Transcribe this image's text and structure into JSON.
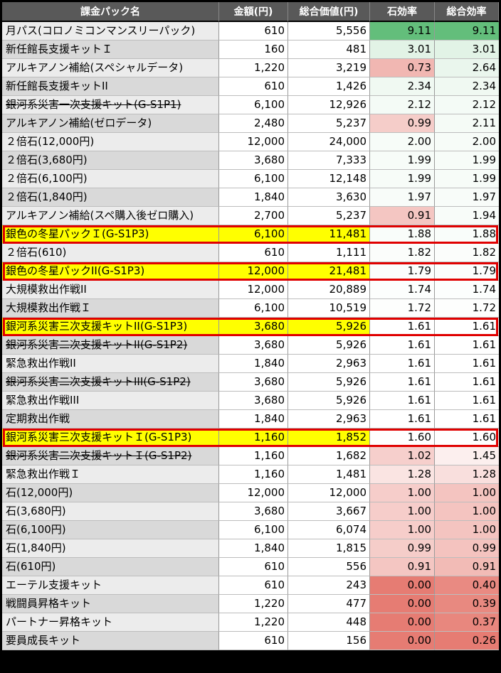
{
  "headers": [
    "課金パック名",
    "金額(円)",
    "総合価値(円)",
    "石効率",
    "総合効率"
  ],
  "rows": [
    {
      "name": "月パス(コロノミコンマンスリーパック)",
      "price": "610",
      "value": "5,556",
      "stone_eff": "9.11",
      "total_eff": "9.11",
      "strike": false,
      "highlight": false
    },
    {
      "name": "新任館長支援キットＩ",
      "price": "160",
      "value": "481",
      "stone_eff": "3.01",
      "total_eff": "3.01",
      "strike": false,
      "highlight": false
    },
    {
      "name": "アルキアノン補給(スペシャルデータ)",
      "price": "1,220",
      "value": "3,219",
      "stone_eff": "0.73",
      "total_eff": "2.64",
      "strike": false,
      "highlight": false
    },
    {
      "name": "新任館長支援キットII",
      "price": "610",
      "value": "1,426",
      "stone_eff": "2.34",
      "total_eff": "2.34",
      "strike": false,
      "highlight": false
    },
    {
      "name": "銀河系災害一次支援キット(G-S1P1)",
      "price": "6,100",
      "value": "12,926",
      "stone_eff": "2.12",
      "total_eff": "2.12",
      "strike": true,
      "highlight": false
    },
    {
      "name": "アルキアノン補給(ゼロデータ)",
      "price": "2,480",
      "value": "5,237",
      "stone_eff": "0.99",
      "total_eff": "2.11",
      "strike": false,
      "highlight": false
    },
    {
      "name": "２倍石(12,000円)",
      "price": "12,000",
      "value": "24,000",
      "stone_eff": "2.00",
      "total_eff": "2.00",
      "strike": false,
      "highlight": false
    },
    {
      "name": "２倍石(3,680円)",
      "price": "3,680",
      "value": "7,333",
      "stone_eff": "1.99",
      "total_eff": "1.99",
      "strike": false,
      "highlight": false
    },
    {
      "name": "２倍石(6,100円)",
      "price": "6,100",
      "value": "12,148",
      "stone_eff": "1.99",
      "total_eff": "1.99",
      "strike": false,
      "highlight": false
    },
    {
      "name": "２倍石(1,840円)",
      "price": "1,840",
      "value": "3,630",
      "stone_eff": "1.97",
      "total_eff": "1.97",
      "strike": false,
      "highlight": false
    },
    {
      "name": "アルキアノン補給(スペ購入後ゼロ購入)",
      "price": "2,700",
      "value": "5,237",
      "stone_eff": "0.91",
      "total_eff": "1.94",
      "strike": false,
      "highlight": false
    },
    {
      "name": "銀色の冬星パックＩ(G-S1P3)",
      "price": "6,100",
      "value": "11,481",
      "stone_eff": "1.88",
      "total_eff": "1.88",
      "strike": false,
      "highlight": true
    },
    {
      "name": "２倍石(610)",
      "price": "610",
      "value": "1,111",
      "stone_eff": "1.82",
      "total_eff": "1.82",
      "strike": false,
      "highlight": false
    },
    {
      "name": "銀色の冬星パックII(G-S1P3)",
      "price": "12,000",
      "value": "21,481",
      "stone_eff": "1.79",
      "total_eff": "1.79",
      "strike": false,
      "highlight": true
    },
    {
      "name": "大規模救出作戦II",
      "price": "12,000",
      "value": "20,889",
      "stone_eff": "1.74",
      "total_eff": "1.74",
      "strike": false,
      "highlight": false
    },
    {
      "name": "大規模救出作戦Ｉ",
      "price": "6,100",
      "value": "10,519",
      "stone_eff": "1.72",
      "total_eff": "1.72",
      "strike": false,
      "highlight": false
    },
    {
      "name": "銀河系災害三次支援キットII(G-S1P3)",
      "price": "3,680",
      "value": "5,926",
      "stone_eff": "1.61",
      "total_eff": "1.61",
      "strike": false,
      "highlight": true
    },
    {
      "name": "銀河系災害二次支援キットII(G-S1P2)",
      "price": "3,680",
      "value": "5,926",
      "stone_eff": "1.61",
      "total_eff": "1.61",
      "strike": true,
      "highlight": false
    },
    {
      "name": "緊急救出作戦II",
      "price": "1,840",
      "value": "2,963",
      "stone_eff": "1.61",
      "total_eff": "1.61",
      "strike": false,
      "highlight": false
    },
    {
      "name": "銀河系災害二次支援キットIII(G-S1P2)",
      "price": "3,680",
      "value": "5,926",
      "stone_eff": "1.61",
      "total_eff": "1.61",
      "strike": true,
      "highlight": false
    },
    {
      "name": "緊急救出作戦III",
      "price": "3,680",
      "value": "5,926",
      "stone_eff": "1.61",
      "total_eff": "1.61",
      "strike": false,
      "highlight": false
    },
    {
      "name": "定期救出作戦",
      "price": "1,840",
      "value": "2,963",
      "stone_eff": "1.61",
      "total_eff": "1.61",
      "strike": false,
      "highlight": false
    },
    {
      "name": "銀河系災害三次支援キットＩ(G-S1P3)",
      "price": "1,160",
      "value": "1,852",
      "stone_eff": "1.60",
      "total_eff": "1.60",
      "strike": false,
      "highlight": true
    },
    {
      "name": "銀河系災害二次支援キットＩ(G-S1P2)",
      "price": "1,160",
      "value": "1,682",
      "stone_eff": "1.02",
      "total_eff": "1.45",
      "strike": true,
      "highlight": false
    },
    {
      "name": "緊急救出作戦Ｉ",
      "price": "1,160",
      "value": "1,481",
      "stone_eff": "1.28",
      "total_eff": "1.28",
      "strike": false,
      "highlight": false
    },
    {
      "name": "石(12,000円)",
      "price": "12,000",
      "value": "12,000",
      "stone_eff": "1.00",
      "total_eff": "1.00",
      "strike": false,
      "highlight": false
    },
    {
      "name": "石(3,680円)",
      "price": "3,680",
      "value": "3,667",
      "stone_eff": "1.00",
      "total_eff": "1.00",
      "strike": false,
      "highlight": false
    },
    {
      "name": "石(6,100円)",
      "price": "6,100",
      "value": "6,074",
      "stone_eff": "1.00",
      "total_eff": "1.00",
      "strike": false,
      "highlight": false
    },
    {
      "name": "石(1,840円)",
      "price": "1,840",
      "value": "1,815",
      "stone_eff": "0.99",
      "total_eff": "0.99",
      "strike": false,
      "highlight": false
    },
    {
      "name": "石(610円)",
      "price": "610",
      "value": "556",
      "stone_eff": "0.91",
      "total_eff": "0.91",
      "strike": false,
      "highlight": false
    },
    {
      "name": "エーテル支援キット",
      "price": "610",
      "value": "243",
      "stone_eff": "0.00",
      "total_eff": "0.40",
      "strike": false,
      "highlight": false
    },
    {
      "name": "戦闘員昇格キット",
      "price": "1,220",
      "value": "477",
      "stone_eff": "0.00",
      "total_eff": "0.39",
      "strike": false,
      "highlight": false
    },
    {
      "name": "パートナー昇格キット",
      "price": "1,220",
      "value": "448",
      "stone_eff": "0.00",
      "total_eff": "0.37",
      "strike": false,
      "highlight": false
    },
    {
      "name": "要員成長キット",
      "price": "610",
      "value": "156",
      "stone_eff": "0.00",
      "total_eff": "0.26",
      "strike": false,
      "highlight": false
    }
  ],
  "colors": {
    "header_bg": "#595959",
    "highlight_bg": "#ffff00",
    "highlight_border": "#e00000",
    "scale_high": "#63be7b",
    "scale_mid": "#ffffff",
    "scale_low": "#e67c73"
  }
}
